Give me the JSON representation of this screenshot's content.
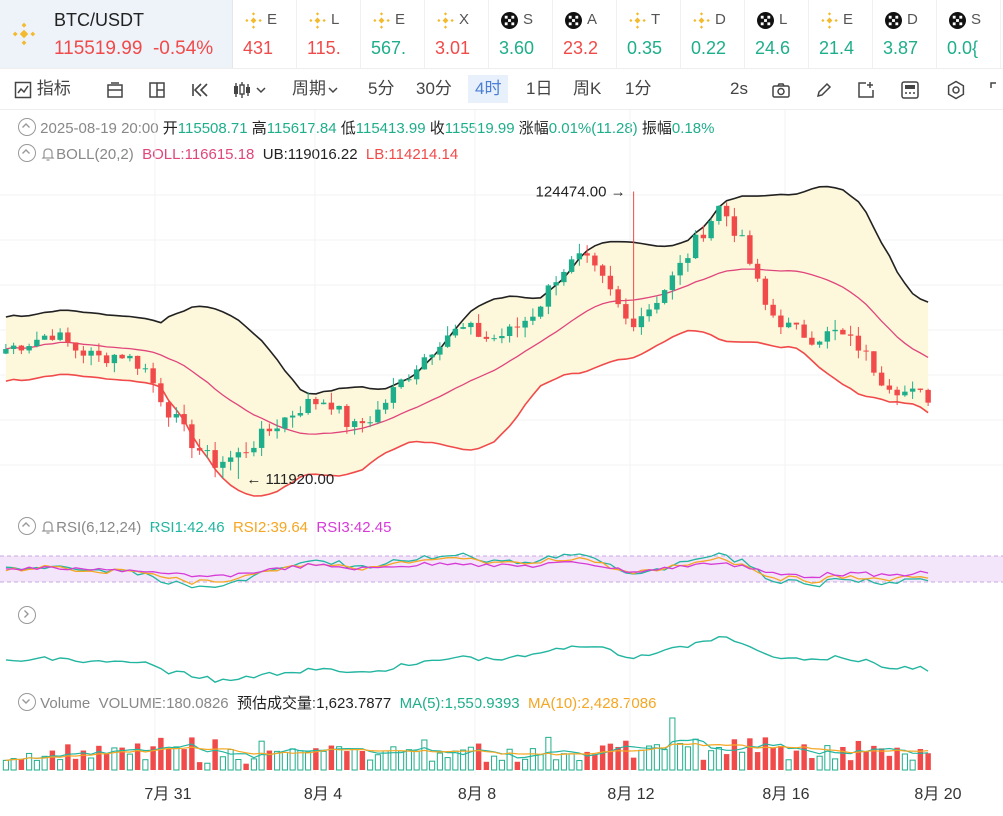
{
  "ticker": {
    "symbol": "BTC/USDT",
    "price": "115519.99",
    "change": "-0.54%",
    "items": [
      {
        "name": "E",
        "value": "431",
        "dir": "dn",
        "icon": "bnb-icon"
      },
      {
        "name": "L",
        "value": "115.",
        "dir": "dn",
        "icon": "bnb-icon"
      },
      {
        "name": "E",
        "value": "567.",
        "dir": "up",
        "icon": "bnb-icon"
      },
      {
        "name": "X",
        "value": "3.01",
        "dir": "dn",
        "icon": "bnb-icon"
      },
      {
        "name": "S",
        "value": "3.60",
        "dir": "up",
        "icon": "okx-icon"
      },
      {
        "name": "A",
        "value": "23.2",
        "dir": "dn",
        "icon": "okx-icon"
      },
      {
        "name": "T",
        "value": "0.35",
        "dir": "up",
        "icon": "bnb-icon"
      },
      {
        "name": "D",
        "value": "0.22",
        "dir": "up",
        "icon": "bnb-icon"
      },
      {
        "name": "L",
        "value": "24.6",
        "dir": "up",
        "icon": "okx-icon"
      },
      {
        "name": "E",
        "value": "21.4",
        "dir": "up",
        "icon": "bnb-icon"
      },
      {
        "name": "D",
        "value": "3.87",
        "dir": "up",
        "icon": "okx-icon"
      },
      {
        "name": "S",
        "value": "0.0{",
        "dir": "up",
        "icon": "okx-icon"
      }
    ]
  },
  "toolbar": {
    "indicator": "指标",
    "period": "周期",
    "intervals": [
      "5分",
      "30分",
      "4时",
      "1日",
      "周K",
      "1分"
    ],
    "active_interval": "4时",
    "refresh": "2s"
  },
  "candle_info": {
    "date": "2025-08-19 20:00",
    "open_label": "开",
    "open": "115508.71",
    "high_label": "高",
    "high": "115617.84",
    "low_label": "低",
    "low": "115413.99",
    "close_label": "收",
    "close": "115519.99",
    "chg_label": "涨幅",
    "chg": "0.01%(11.28)",
    "amp_label": "振幅",
    "amp": "0.18%"
  },
  "boll": {
    "name": "BOLL(20,2)",
    "boll": "BOLL:116615.18",
    "ub": "UB:119016.22",
    "lb": "LB:114214.14"
  },
  "rsi": {
    "name": "RSI(6,12,24)",
    "rsi1": "RSI1:42.46",
    "rsi2": "RSI2:39.64",
    "rsi3": "RSI3:42.45"
  },
  "volume": {
    "name": "Volume",
    "vol": "VOLUME:180.0826",
    "est": "预估成交量:1,623.7877",
    "ma5": "MA(5):1,550.9393",
    "ma10": "MA(10):2,428.7086"
  },
  "colors": {
    "up": "#1fae8b",
    "down": "#f04a4a",
    "boll_mid": "#e0457b",
    "boll_band": "#fdf8dc",
    "rsi1": "#22b5a0",
    "rsi2": "#f5a623",
    "rsi3": "#d63bd6",
    "accent": "#4a7fd4"
  },
  "chart_data": {
    "type": "candlestick",
    "x_labels": [
      "7月 31",
      "8月 4",
      "8月 8",
      "8月 12",
      "8月 16",
      "8月 20"
    ],
    "ylim": [
      111000,
      125500
    ],
    "high_annotation": "124474.00",
    "low_annotation": "111920.00",
    "high_value": 124474,
    "low_value": 111920,
    "close_anchors": [
      117600,
      117900,
      118300,
      117600,
      117200,
      117400,
      116800,
      115000,
      113600,
      112600,
      112900,
      113700,
      114500,
      115200,
      115400,
      114100,
      114700,
      116000,
      117100,
      118200,
      118500,
      118000,
      118400,
      119300,
      121000,
      121600,
      120400,
      118700,
      119500,
      120800,
      122400,
      123900,
      122100,
      119300,
      118500,
      118100,
      118300,
      117700,
      116300,
      115700,
      115500
    ]
  }
}
